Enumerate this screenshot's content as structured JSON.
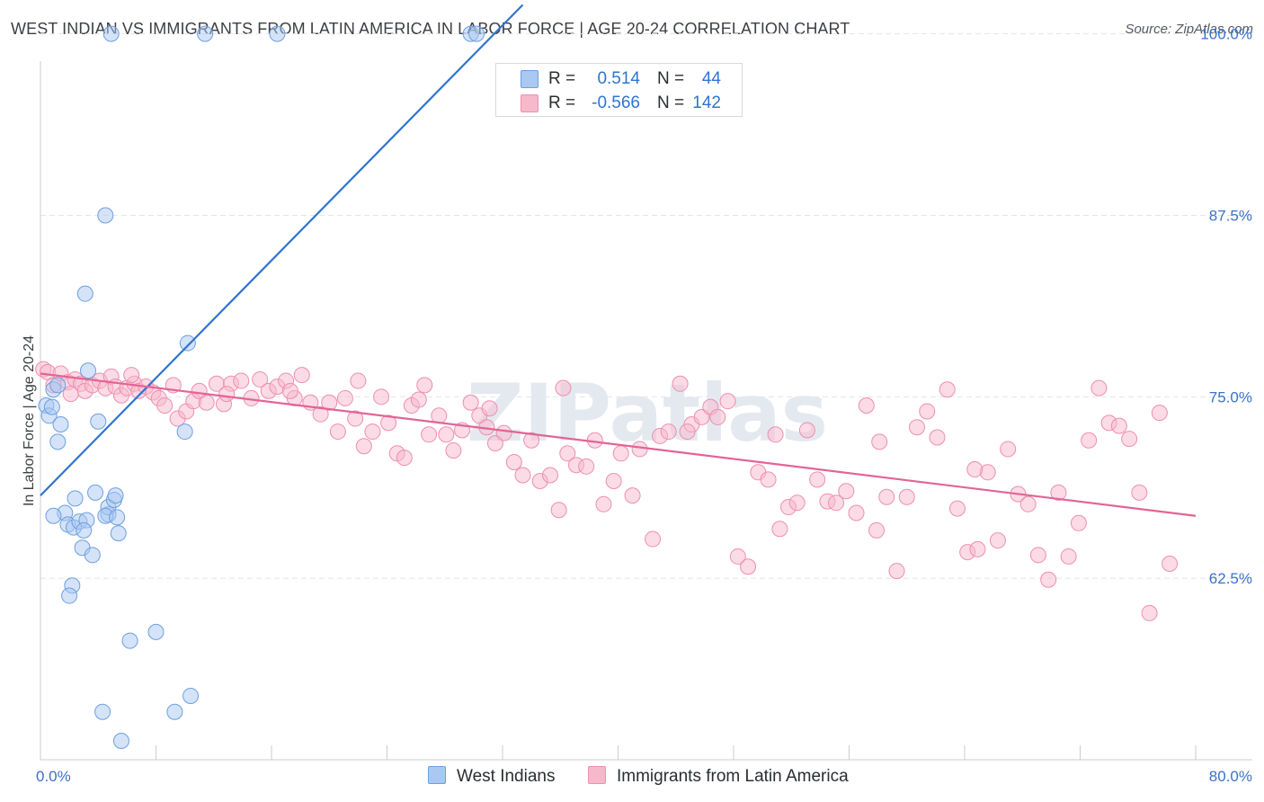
{
  "title": "WEST INDIAN VS IMMIGRANTS FROM LATIN AMERICA IN LABOR FORCE | AGE 20-24 CORRELATION CHART",
  "source": "Source: ZipAtlas.com",
  "watermark": "ZIPatlas",
  "stats": [
    {
      "r_label": "R =",
      "r_value": "0.514",
      "n_label": "N =",
      "n_value": "44"
    },
    {
      "r_label": "R =",
      "r_value": "-0.566",
      "n_label": "N =",
      "n_value": "142"
    }
  ],
  "legend": [
    "West Indians",
    "Immigrants from Latin America"
  ],
  "colors": {
    "blue_fill": "#aac8f2",
    "blue_stroke": "#6d9fe0",
    "blue_line": "#2f74d0",
    "pink_fill": "#f7b8cc",
    "pink_stroke": "#ee8fae",
    "pink_line": "#e26495",
    "tick_text": "#3a72c9",
    "grid": "#e3e5e8"
  },
  "chart_data": {
    "type": "scatter",
    "title": "WEST INDIAN VS IMMIGRANTS FROM LATIN AMERICA IN LABOR FORCE | AGE 20-24 CORRELATION CHART",
    "xlabel": "",
    "ylabel": "In Labor Force | Age 20-24",
    "xlim": [
      0,
      80
    ],
    "ylim": [
      50,
      100
    ],
    "x_tick_labels": [
      "0.0%",
      "80.0%"
    ],
    "y_ticks": [
      62.5,
      75.0,
      87.5,
      100.0
    ],
    "y_tick_labels": [
      "62.5%",
      "75.0%",
      "87.5%",
      "100.0%"
    ],
    "series": [
      {
        "name": "West Indians",
        "r": 0.514,
        "n": 44,
        "trend": {
          "x": [
            0.0,
            33.4
          ],
          "y": [
            68.2,
            102.0
          ]
        },
        "points": [
          [
            4.9,
            100.0
          ],
          [
            11.4,
            100.0
          ],
          [
            16.4,
            100.0
          ],
          [
            29.8,
            100.0
          ],
          [
            30.2,
            100.0
          ],
          [
            4.5,
            87.5
          ],
          [
            3.1,
            82.1
          ],
          [
            3.3,
            76.8
          ],
          [
            10.2,
            78.7
          ],
          [
            10.0,
            72.6
          ],
          [
            0.4,
            74.4
          ],
          [
            0.6,
            73.7
          ],
          [
            0.8,
            74.3
          ],
          [
            0.9,
            75.5
          ],
          [
            1.2,
            75.8
          ],
          [
            1.4,
            73.1
          ],
          [
            1.2,
            71.9
          ],
          [
            4.0,
            73.3
          ],
          [
            1.7,
            67.0
          ],
          [
            2.4,
            68.0
          ],
          [
            0.9,
            66.8
          ],
          [
            1.9,
            66.2
          ],
          [
            2.3,
            66.0
          ],
          [
            2.7,
            66.4
          ],
          [
            3.2,
            66.5
          ],
          [
            2.9,
            64.6
          ],
          [
            3.6,
            64.1
          ],
          [
            2.2,
            62.0
          ],
          [
            2.0,
            61.3
          ],
          [
            4.7,
            66.9
          ],
          [
            4.7,
            67.4
          ],
          [
            5.1,
            67.9
          ],
          [
            5.2,
            68.2
          ],
          [
            3.8,
            68.4
          ],
          [
            4.5,
            66.8
          ],
          [
            6.2,
            58.2
          ],
          [
            8.0,
            58.8
          ],
          [
            4.3,
            53.3
          ],
          [
            9.3,
            53.3
          ],
          [
            10.4,
            54.4
          ],
          [
            5.6,
            51.3
          ],
          [
            5.3,
            66.7
          ],
          [
            5.4,
            65.6
          ],
          [
            3.0,
            65.8
          ]
        ]
      },
      {
        "name": "Immigrants from Latin America",
        "r": -0.566,
        "n": 142,
        "trend": {
          "x": [
            0.0,
            80.0
          ],
          "y": [
            76.6,
            66.8
          ]
        },
        "points": [
          [
            0.2,
            76.9
          ],
          [
            0.5,
            76.7
          ],
          [
            0.9,
            75.8
          ],
          [
            1.4,
            76.6
          ],
          [
            1.9,
            76.0
          ],
          [
            2.4,
            76.2
          ],
          [
            2.8,
            75.9
          ],
          [
            3.1,
            75.4
          ],
          [
            3.6,
            75.8
          ],
          [
            4.1,
            76.1
          ],
          [
            4.5,
            75.6
          ],
          [
            4.9,
            76.4
          ],
          [
            5.2,
            75.7
          ],
          [
            5.6,
            75.1
          ],
          [
            6.0,
            75.6
          ],
          [
            6.5,
            75.9
          ],
          [
            6.8,
            75.4
          ],
          [
            7.3,
            75.7
          ],
          [
            7.8,
            75.3
          ],
          [
            8.2,
            74.9
          ],
          [
            8.6,
            74.4
          ],
          [
            9.2,
            75.8
          ],
          [
            9.5,
            73.5
          ],
          [
            10.1,
            74.0
          ],
          [
            10.6,
            74.7
          ],
          [
            11.0,
            75.4
          ],
          [
            11.5,
            74.6
          ],
          [
            12.2,
            75.9
          ],
          [
            12.7,
            74.5
          ],
          [
            13.2,
            75.9
          ],
          [
            13.9,
            76.1
          ],
          [
            14.6,
            74.9
          ],
          [
            15.2,
            76.2
          ],
          [
            15.8,
            75.4
          ],
          [
            16.4,
            75.7
          ],
          [
            17.0,
            76.1
          ],
          [
            17.6,
            74.9
          ],
          [
            18.1,
            76.5
          ],
          [
            18.7,
            74.6
          ],
          [
            19.4,
            73.8
          ],
          [
            20.0,
            74.6
          ],
          [
            20.6,
            72.6
          ],
          [
            21.1,
            74.9
          ],
          [
            21.8,
            73.5
          ],
          [
            22.4,
            71.6
          ],
          [
            23.0,
            72.6
          ],
          [
            23.6,
            75.0
          ],
          [
            24.1,
            73.2
          ],
          [
            24.7,
            71.1
          ],
          [
            25.2,
            70.8
          ],
          [
            25.7,
            74.4
          ],
          [
            26.2,
            74.8
          ],
          [
            26.9,
            72.4
          ],
          [
            27.6,
            73.7
          ],
          [
            28.1,
            72.4
          ],
          [
            28.6,
            71.3
          ],
          [
            29.2,
            72.7
          ],
          [
            29.8,
            74.6
          ],
          [
            30.4,
            73.7
          ],
          [
            30.9,
            72.9
          ],
          [
            31.5,
            71.8
          ],
          [
            32.1,
            72.5
          ],
          [
            32.8,
            70.5
          ],
          [
            33.4,
            69.6
          ],
          [
            34.0,
            72.0
          ],
          [
            34.6,
            69.2
          ],
          [
            35.3,
            69.6
          ],
          [
            35.9,
            67.2
          ],
          [
            36.5,
            71.1
          ],
          [
            37.1,
            70.3
          ],
          [
            37.8,
            70.2
          ],
          [
            38.4,
            72.0
          ],
          [
            39.0,
            67.6
          ],
          [
            39.7,
            69.2
          ],
          [
            40.2,
            71.1
          ],
          [
            41.0,
            68.2
          ],
          [
            41.5,
            71.4
          ],
          [
            42.4,
            65.2
          ],
          [
            42.9,
            72.3
          ],
          [
            43.5,
            72.6
          ],
          [
            44.3,
            75.9
          ],
          [
            45.1,
            73.1
          ],
          [
            45.8,
            73.6
          ],
          [
            46.4,
            74.3
          ],
          [
            46.9,
            73.6
          ],
          [
            47.6,
            74.7
          ],
          [
            48.3,
            64.0
          ],
          [
            49.0,
            63.3
          ],
          [
            49.7,
            69.8
          ],
          [
            50.4,
            69.3
          ],
          [
            51.2,
            65.9
          ],
          [
            51.8,
            67.4
          ],
          [
            52.4,
            67.7
          ],
          [
            53.1,
            72.7
          ],
          [
            53.8,
            69.3
          ],
          [
            54.5,
            67.8
          ],
          [
            55.1,
            67.7
          ],
          [
            55.8,
            68.5
          ],
          [
            56.5,
            67.0
          ],
          [
            57.2,
            74.4
          ],
          [
            57.9,
            65.8
          ],
          [
            58.6,
            68.1
          ],
          [
            59.3,
            63.0
          ],
          [
            60.0,
            68.1
          ],
          [
            60.7,
            72.9
          ],
          [
            61.4,
            74.0
          ],
          [
            62.1,
            72.2
          ],
          [
            62.8,
            75.5
          ],
          [
            63.5,
            67.3
          ],
          [
            64.2,
            64.3
          ],
          [
            64.9,
            64.5
          ],
          [
            65.6,
            69.8
          ],
          [
            66.3,
            65.1
          ],
          [
            67.0,
            71.4
          ],
          [
            67.7,
            68.3
          ],
          [
            68.4,
            67.6
          ],
          [
            69.1,
            64.1
          ],
          [
            69.8,
            62.4
          ],
          [
            70.5,
            68.4
          ],
          [
            71.2,
            64.0
          ],
          [
            71.9,
            66.3
          ],
          [
            72.6,
            72.0
          ],
          [
            73.3,
            75.6
          ],
          [
            74.0,
            73.2
          ],
          [
            74.7,
            73.0
          ],
          [
            75.4,
            72.1
          ],
          [
            76.1,
            68.4
          ],
          [
            76.8,
            60.1
          ],
          [
            77.5,
            73.9
          ],
          [
            78.2,
            63.5
          ],
          [
            2.1,
            75.2
          ],
          [
            6.3,
            76.5
          ],
          [
            12.9,
            75.2
          ],
          [
            17.3,
            75.4
          ],
          [
            22.0,
            76.1
          ],
          [
            26.6,
            75.8
          ],
          [
            31.1,
            74.2
          ],
          [
            36.2,
            75.6
          ],
          [
            44.8,
            72.6
          ],
          [
            50.9,
            72.4
          ],
          [
            58.1,
            71.9
          ],
          [
            64.7,
            70.0
          ]
        ]
      }
    ]
  }
}
